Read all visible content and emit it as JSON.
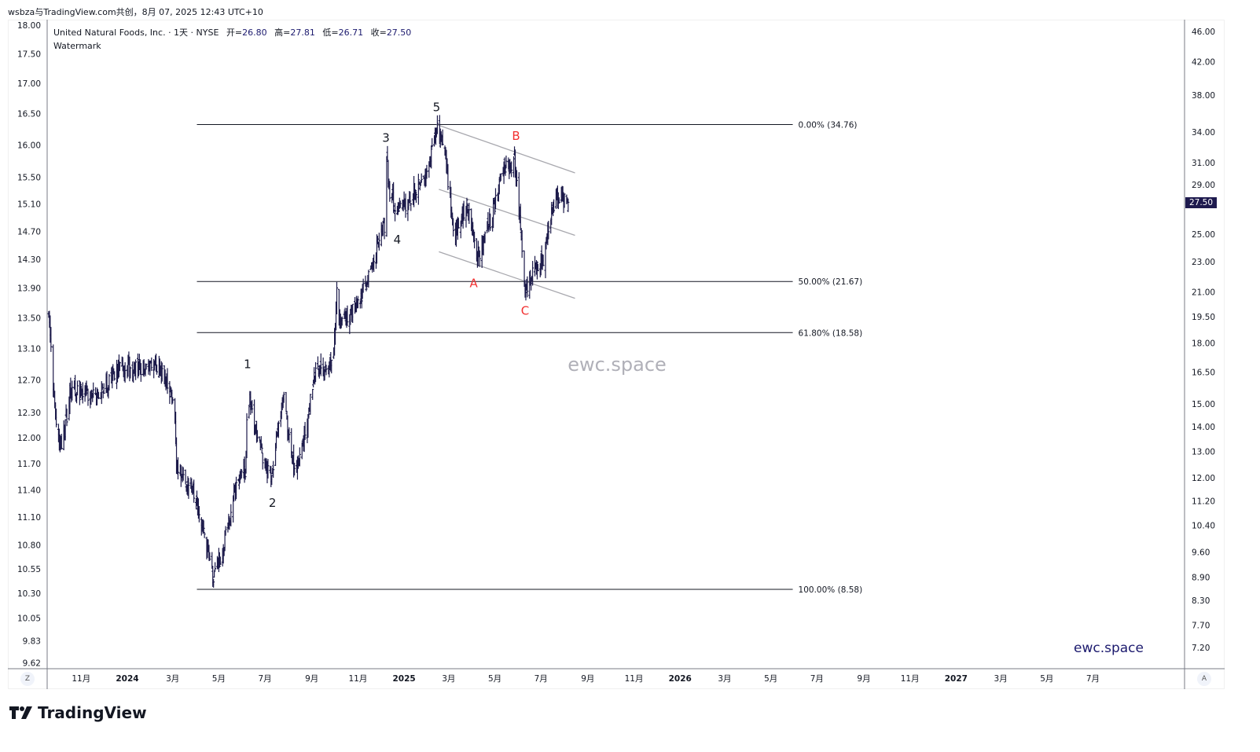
{
  "caption": "wsbza与TradingView.com共创，8月 07, 2025 12:43 UTC+10",
  "legend": {
    "title": "United Natural Foods, Inc. · 1天 · NYSE",
    "open_label": "开=",
    "open": "26.80",
    "high_label": "高=",
    "high": "27.81",
    "low_label": "低=",
    "low": "26.71",
    "close_label": "收=",
    "close": "27.50",
    "watermark_line": "Watermark"
  },
  "watermark_center": "ewc.space",
  "watermark_corner": "ewc.space",
  "brand": "TradingView",
  "buttons": {
    "left_scale": "Z",
    "right_scale": "A"
  },
  "colors": {
    "bar": "#1c1a4a",
    "fib": "#131722",
    "channel": "#a8a8ae",
    "wave": "#131722",
    "correction": "#f23030",
    "price_tag": "#1e1a4e"
  },
  "chart_data": {
    "type": "ohlc",
    "title": "United Natural Foods, Inc. · 1天 · NYSE",
    "scale": "log",
    "last_price": "27.50",
    "right_axis": {
      "ylim": [
        7.0,
        48.0
      ],
      "ticks": [
        "46.00",
        "42.00",
        "38.00",
        "34.00",
        "31.00",
        "29.00",
        "25.00",
        "23.00",
        "21.00",
        "19.50",
        "18.00",
        "16.50",
        "15.00",
        "14.00",
        "13.00",
        "12.00",
        "11.20",
        "10.40",
        "9.60",
        "8.90",
        "8.30",
        "7.70",
        "7.20"
      ]
    },
    "left_axis": {
      "ticks": [
        "18.00",
        "17.50",
        "17.00",
        "16.50",
        "16.00",
        "15.50",
        "15.10",
        "14.70",
        "14.30",
        "13.90",
        "13.50",
        "13.10",
        "12.70",
        "12.30",
        "12.00",
        "11.70",
        "11.40",
        "11.10",
        "10.80",
        "10.55",
        "10.30",
        "10.05",
        "9.83",
        "9.62"
      ]
    },
    "x_ticks": [
      {
        "label": "11月",
        "date": "2023-11-01"
      },
      {
        "label": "2024",
        "date": "2024-01-01",
        "bold": true
      },
      {
        "label": "3月",
        "date": "2024-03-01"
      },
      {
        "label": "5月",
        "date": "2024-05-01"
      },
      {
        "label": "7月",
        "date": "2024-07-01"
      },
      {
        "label": "9月",
        "date": "2024-09-01"
      },
      {
        "label": "11月",
        "date": "2024-11-01"
      },
      {
        "label": "2025",
        "date": "2025-01-01",
        "bold": true
      },
      {
        "label": "3月",
        "date": "2025-03-01"
      },
      {
        "label": "5月",
        "date": "2025-05-01"
      },
      {
        "label": "7月",
        "date": "2025-07-01"
      },
      {
        "label": "9月",
        "date": "2025-09-01"
      },
      {
        "label": "11月",
        "date": "2025-11-01"
      },
      {
        "label": "2026",
        "date": "2026-01-01",
        "bold": true
      },
      {
        "label": "3月",
        "date": "2026-03-01"
      },
      {
        "label": "5月",
        "date": "2026-05-01"
      },
      {
        "label": "7月",
        "date": "2026-07-01"
      },
      {
        "label": "9月",
        "date": "2026-09-01"
      },
      {
        "label": "11月",
        "date": "2026-11-01"
      },
      {
        "label": "2027",
        "date": "2027-01-01",
        "bold": true
      },
      {
        "label": "3月",
        "date": "2027-03-01"
      },
      {
        "label": "5月",
        "date": "2027-05-01"
      },
      {
        "label": "7月",
        "date": "2027-07-01"
      }
    ],
    "price_path": [
      [
        "2023-09-19",
        19.2
      ],
      [
        "2023-09-27",
        14.8
      ],
      [
        "2023-10-06",
        13.1
      ],
      [
        "2023-10-18",
        15.7
      ],
      [
        "2023-11-18",
        15.3
      ],
      [
        "2023-12-20",
        16.6
      ],
      [
        "2024-02-10",
        16.8
      ],
      [
        "2024-03-03",
        15.0
      ],
      [
        "2024-03-06",
        12.2
      ],
      [
        "2024-03-27",
        11.7
      ],
      [
        "2024-04-12",
        10.1
      ],
      [
        "2024-04-24",
        8.8
      ],
      [
        "2024-05-08",
        9.8
      ],
      [
        "2024-05-23",
        11.7
      ],
      [
        "2024-06-05",
        12.2
      ],
      [
        "2024-06-08",
        15.4
      ],
      [
        "2024-06-24",
        13.1
      ],
      [
        "2024-07-09",
        12.0
      ],
      [
        "2024-07-25",
        15.4
      ],
      [
        "2024-08-09",
        12.2
      ],
      [
        "2024-08-25",
        14.0
      ],
      [
        "2024-09-04",
        16.3
      ],
      [
        "2024-09-29",
        16.8
      ],
      [
        "2024-10-04",
        21.0
      ],
      [
        "2024-10-08",
        19.0
      ],
      [
        "2024-11-06",
        20.8
      ],
      [
        "2024-11-21",
        23.1
      ],
      [
        "2024-12-02",
        25.2
      ],
      [
        "2024-12-08",
        26.0
      ],
      [
        "2024-12-09",
        31.5
      ],
      [
        "2024-12-13",
        28.5
      ],
      [
        "2024-12-23",
        26.6
      ],
      [
        "2025-01-18",
        28.7
      ],
      [
        "2025-02-02",
        30.7
      ],
      [
        "2025-02-13",
        34.3
      ],
      [
        "2025-02-23",
        32.1
      ],
      [
        "2025-03-02",
        28.1
      ],
      [
        "2025-03-08",
        24.7
      ],
      [
        "2025-03-26",
        27.6
      ],
      [
        "2025-04-08",
        23.3
      ],
      [
        "2025-04-26",
        26.2
      ],
      [
        "2025-05-12",
        30.3
      ],
      [
        "2025-05-27",
        31.3
      ],
      [
        "2025-06-04",
        25.7
      ],
      [
        "2025-06-10",
        21.3
      ],
      [
        "2025-06-22",
        22.3
      ],
      [
        "2025-07-06",
        23.3
      ],
      [
        "2025-07-13",
        26.4
      ],
      [
        "2025-07-24",
        28.1
      ],
      [
        "2025-08-06",
        27.5
      ]
    ],
    "fib_levels": [
      {
        "label": "0.00% (34.76)",
        "price": 34.76
      },
      {
        "label": "50.00% (21.67)",
        "price": 21.67
      },
      {
        "label": "61.80% (18.58)",
        "price": 18.58
      },
      {
        "label": "100.00% (8.58)",
        "price": 8.58
      }
    ],
    "fib_range": {
      "from": "2024-04-02",
      "to": "2026-05-30"
    },
    "channel_lines": [
      {
        "from": [
          "2025-02-13",
          34.76
        ],
        "to": [
          "2025-08-15",
          30.05
        ]
      },
      {
        "from": [
          "2025-02-16",
          28.6
        ],
        "to": [
          "2025-08-15",
          24.9
        ]
      },
      {
        "from": [
          "2025-02-16",
          23.7
        ],
        "to": [
          "2025-08-15",
          20.6
        ]
      }
    ],
    "wave_labels": [
      {
        "text": "1",
        "date": "2024-06-08",
        "price": 16.7,
        "kind": "impulse"
      },
      {
        "text": "2",
        "date": "2024-07-11",
        "price": 11.0,
        "kind": "impulse"
      },
      {
        "text": "3",
        "date": "2024-12-08",
        "price": 33.0,
        "kind": "impulse"
      },
      {
        "text": "4",
        "date": "2024-12-23",
        "price": 24.3,
        "kind": "impulse"
      },
      {
        "text": "5",
        "date": "2025-02-13",
        "price": 36.2,
        "kind": "impulse"
      },
      {
        "text": "A",
        "date": "2025-04-03",
        "price": 21.3,
        "kind": "correction"
      },
      {
        "text": "B",
        "date": "2025-05-29",
        "price": 33.2,
        "kind": "correction"
      },
      {
        "text": "C",
        "date": "2025-06-10",
        "price": 19.6,
        "kind": "correction"
      }
    ]
  }
}
